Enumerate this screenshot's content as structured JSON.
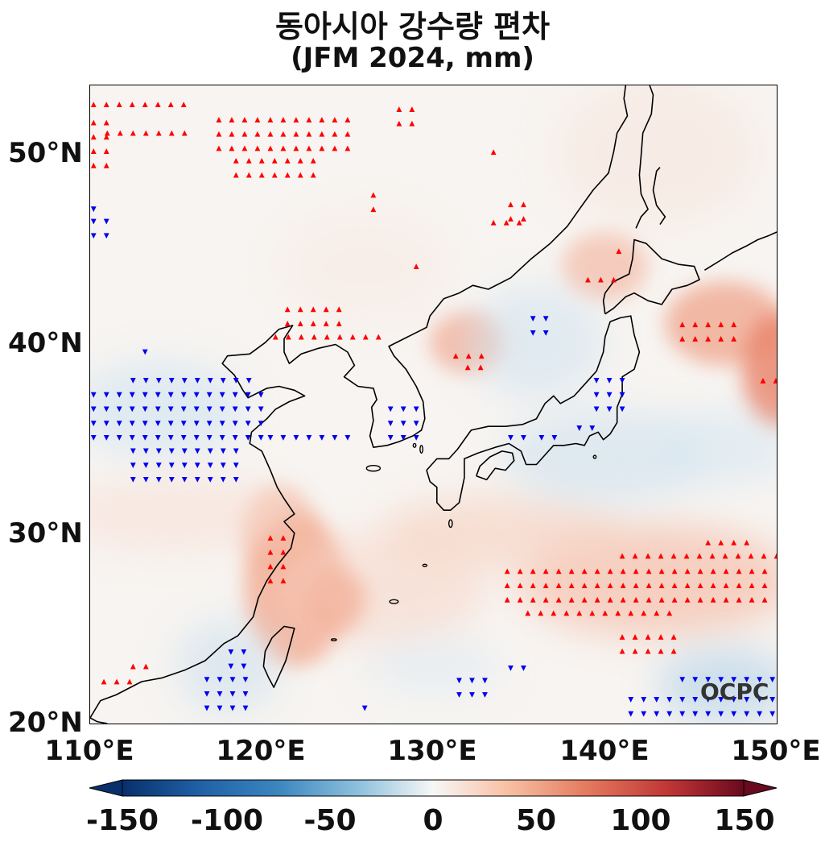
{
  "title": {
    "line1": "동아시아 강수량 편차",
    "line2": "(JFM 2024, mm)"
  },
  "map": {
    "lon_range": [
      110,
      150
    ],
    "lat_range": [
      20,
      53.5
    ],
    "y_ticks": [
      "50°N",
      "40°N",
      "30°N",
      "20°N"
    ],
    "x_ticks": [
      "110°E",
      "120°E",
      "130°E",
      "140°E",
      "150°E"
    ],
    "watermark": "OCPC",
    "colormap": "RdBu_r"
  },
  "colorbar": {
    "range": [
      -150,
      150
    ],
    "ticks": [
      "-150",
      "-100",
      "-50",
      "0",
      "50",
      "100",
      "150"
    ],
    "colors": {
      "min": "#053061",
      "neg": "#4393c3",
      "zero": "#f7f7f7",
      "pos": "#d6604d",
      "max": "#67001f"
    }
  },
  "markers": {
    "positive_color": "#ff0000",
    "negative_color": "#0000ee"
  }
}
